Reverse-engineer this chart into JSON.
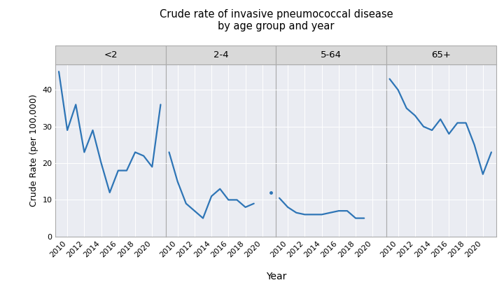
{
  "title": "Crude rate of invasive pneumococcal disease\nby age group and year",
  "xlabel": "Year",
  "ylabel": "Crude Rate (per 100,000)",
  "years": [
    2009,
    2010,
    2011,
    2012,
    2013,
    2014,
    2015,
    2016,
    2017,
    2018,
    2019,
    2020,
    2021
  ],
  "age_groups": [
    "<2",
    "2-4",
    "5-64",
    "65+"
  ],
  "panel_data": {
    "<2": [
      45,
      29,
      36,
      23,
      29,
      20,
      12,
      18,
      18,
      23,
      22,
      19,
      36
    ],
    "2-4": [
      23,
      15,
      9,
      7,
      5,
      11,
      13,
      10,
      10,
      8,
      9,
      null,
      12
    ],
    "5-64": [
      10.5,
      8,
      6.5,
      6,
      6,
      6,
      6.5,
      7,
      7,
      5,
      5,
      null,
      null
    ],
    "65+": [
      43,
      40,
      35,
      33,
      30,
      29,
      32,
      28,
      31,
      31,
      25,
      17,
      23
    ]
  },
  "line_color": "#2e75b6",
  "plot_bg": "#eaecf2",
  "header_bg": "#d9d9d9",
  "header_border": "#aaaaaa",
  "panel_border": "#aaaaaa",
  "grid_color": "#ffffff",
  "ylim": [
    0,
    47
  ],
  "yticks": [
    0,
    10,
    20,
    30,
    40
  ],
  "xticks": [
    2010,
    2012,
    2014,
    2016,
    2018,
    2020
  ],
  "xlim": [
    2008.6,
    2021.6
  ],
  "title_fontsize": 10.5,
  "axis_label_fontsize": 9,
  "tick_fontsize": 8,
  "header_fontsize": 9.5,
  "linewidth": 1.6
}
